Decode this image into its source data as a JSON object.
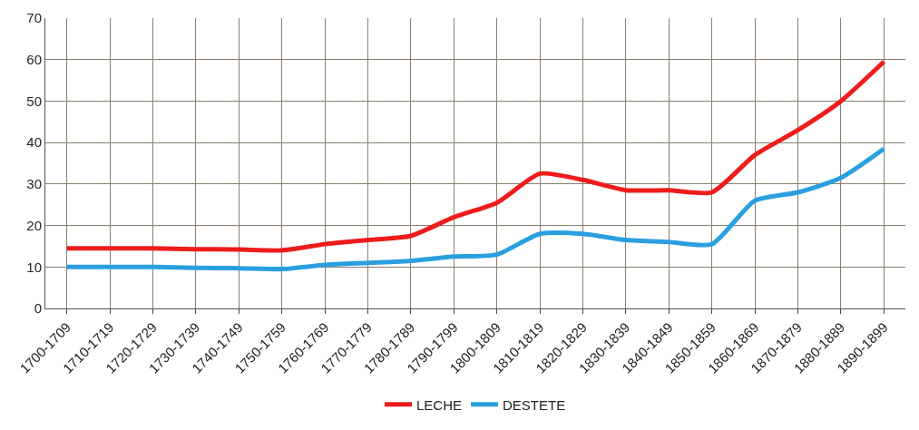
{
  "chart_data": {
    "type": "line",
    "categories": [
      "1700-1709",
      "1710-1719",
      "1720-1729",
      "1730-1739",
      "1740-1749",
      "1750-1759",
      "1760-1769",
      "1770-1779",
      "1780-1789",
      "1790-1799",
      "1800-1809",
      "1810-1819",
      "1820-1829",
      "1830-1839",
      "1840-1849",
      "1850-1859",
      "1860-1869",
      "1870-1879",
      "1880-1889",
      "1890-1899"
    ],
    "series": [
      {
        "name": "LECHE",
        "color": "#ee1c1c",
        "values": [
          14.5,
          14.5,
          14.5,
          14.3,
          14.2,
          14,
          15.5,
          16.5,
          17.5,
          22,
          25.5,
          32.5,
          31,
          28.5,
          28.5,
          28,
          37,
          43,
          50,
          59.5
        ]
      },
      {
        "name": "DESTETE",
        "color": "#2a9fe0",
        "values": [
          10,
          10,
          10,
          9.8,
          9.7,
          9.5,
          10.5,
          11,
          11.5,
          12.5,
          13,
          18,
          18,
          16.5,
          16,
          15.5,
          26,
          28,
          31.5,
          38.5
        ]
      }
    ],
    "ylim": [
      0,
      70
    ],
    "yticks": [
      0,
      10,
      20,
      30,
      40,
      50,
      60,
      70
    ],
    "grid": true,
    "legend": "bottom",
    "marker": "none",
    "line_style": "solid"
  }
}
